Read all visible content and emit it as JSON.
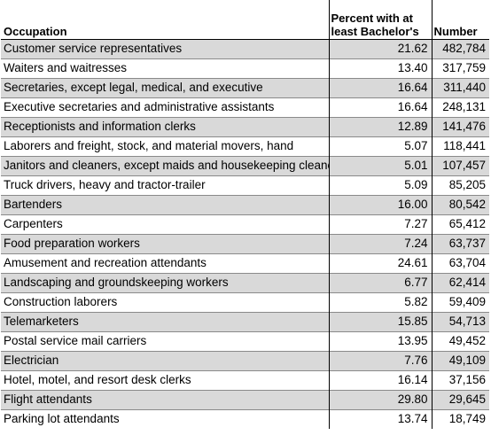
{
  "table": {
    "headers": {
      "occupation": "Occupation",
      "percent_line1": "Percent with at",
      "percent_line2": "least Bachelor's",
      "number": "Number"
    },
    "rows": [
      {
        "occupation": "Customer service representatives",
        "percent": "21.62",
        "number": "482,784"
      },
      {
        "occupation": "Waiters and waitresses",
        "percent": "13.40",
        "number": "317,759"
      },
      {
        "occupation": "Secretaries, except legal, medical, and executive",
        "percent": "16.64",
        "number": "311,440"
      },
      {
        "occupation": "Executive secretaries and administrative assistants",
        "percent": "16.64",
        "number": "248,131"
      },
      {
        "occupation": "Receptionists and information clerks",
        "percent": "12.89",
        "number": "141,476"
      },
      {
        "occupation": "Laborers and freight, stock, and material movers, hand",
        "percent": "5.07",
        "number": "118,441"
      },
      {
        "occupation": "Janitors and cleaners, except maids and housekeeping cleaners",
        "percent": "5.01",
        "number": "107,457"
      },
      {
        "occupation": "Truck drivers, heavy and tractor-trailer",
        "percent": "5.09",
        "number": "85,205"
      },
      {
        "occupation": "Bartenders",
        "percent": "16.00",
        "number": "80,542"
      },
      {
        "occupation": "Carpenters",
        "percent": "7.27",
        "number": "65,412"
      },
      {
        "occupation": "Food preparation workers",
        "percent": "7.24",
        "number": "63,737"
      },
      {
        "occupation": "Amusement and recreation attendants",
        "percent": "24.61",
        "number": "63,704"
      },
      {
        "occupation": "Landscaping and groundskeeping workers",
        "percent": "6.77",
        "number": "62,414"
      },
      {
        "occupation": "Construction laborers",
        "percent": "5.82",
        "number": "59,409"
      },
      {
        "occupation": "Telemarketers",
        "percent": "15.85",
        "number": "54,713"
      },
      {
        "occupation": "Postal service mail carriers",
        "percent": "13.95",
        "number": "49,452"
      },
      {
        "occupation": "Electrician",
        "percent": "7.76",
        "number": "49,109"
      },
      {
        "occupation": "Hotel, motel, and resort desk clerks",
        "percent": "16.14",
        "number": "37,156"
      },
      {
        "occupation": "Flight attendants",
        "percent": "29.80",
        "number": "29,645"
      },
      {
        "occupation": "Parking lot attendants",
        "percent": "13.74",
        "number": "18,749"
      }
    ]
  }
}
